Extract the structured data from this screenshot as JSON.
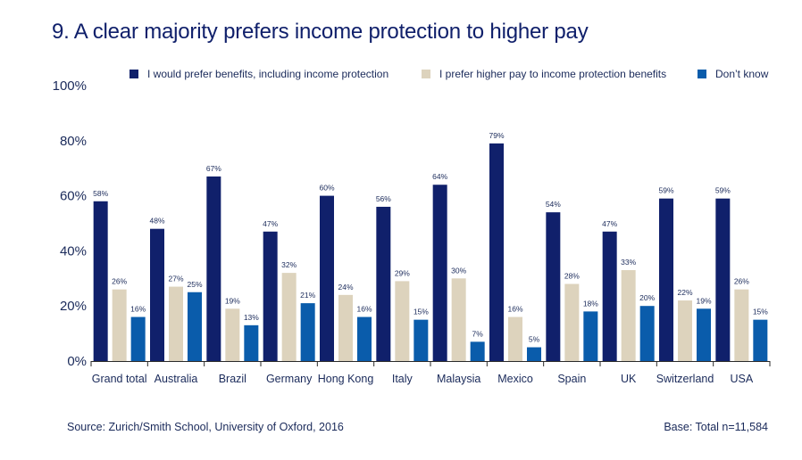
{
  "chart_data": {
    "type": "bar",
    "title": "9. A clear majority prefers income protection to higher pay",
    "categories": [
      "Grand total",
      "Australia",
      "Brazil",
      "Germany",
      "Hong Kong",
      "Italy",
      "Malaysia",
      "Mexico",
      "Spain",
      "UK",
      "Switzerland",
      "USA"
    ],
    "series": [
      {
        "name": "I would prefer benefits, including income protection",
        "color": "#10206b",
        "values": [
          58,
          48,
          67,
          47,
          60,
          56,
          64,
          79,
          54,
          47,
          59,
          59
        ]
      },
      {
        "name": "I prefer higher pay to income protection benefits",
        "color": "#ddd3bd",
        "values": [
          26,
          27,
          19,
          32,
          24,
          29,
          30,
          16,
          28,
          33,
          22,
          26
        ]
      },
      {
        "name": "Don’t know",
        "color": "#0a5cab",
        "values": [
          16,
          25,
          13,
          21,
          16,
          15,
          7,
          5,
          18,
          20,
          19,
          15
        ]
      }
    ],
    "yticks": [
      "0%",
      "20%",
      "40%",
      "60%",
      "80%",
      "100%"
    ],
    "ylim": [
      0,
      100
    ],
    "value_suffix": "%",
    "xlabel": "",
    "ylabel": "",
    "grid": false,
    "legend_position": "top"
  },
  "footer": {
    "source": "Source: Zurich/Smith School, University of Oxford, 2016",
    "base": "Base: Total n=11,584"
  }
}
